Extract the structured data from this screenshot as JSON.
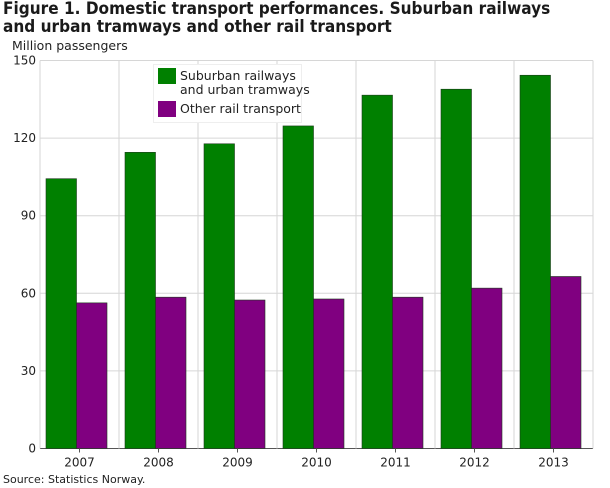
{
  "chart_data": {
    "type": "bar",
    "title": "Figure 1. Domestic transport performances. Suburban railways and urban tramways and other rail transport",
    "ylabel": "Million passengers",
    "xlabel": "",
    "source": "Source: Statistics Norway.",
    "categories": [
      "2007",
      "2008",
      "2009",
      "2010",
      "2011",
      "2012",
      "2013"
    ],
    "ylim": [
      0,
      150
    ],
    "yticks": [
      0,
      30,
      60,
      90,
      120,
      150
    ],
    "grid": true,
    "legend_position": "top-left",
    "series": [
      {
        "name_lines": [
          "Suburban railways",
          "and urban tramways"
        ],
        "color": "#008000",
        "values": [
          104.3,
          114.5,
          117.8,
          124.7,
          136.6,
          138.9,
          144.3
        ]
      },
      {
        "name_lines": [
          "Other rail transport"
        ],
        "color": "#800080",
        "values": [
          56.3,
          58.5,
          57.4,
          57.8,
          58.5,
          62.0,
          66.5
        ]
      }
    ]
  }
}
